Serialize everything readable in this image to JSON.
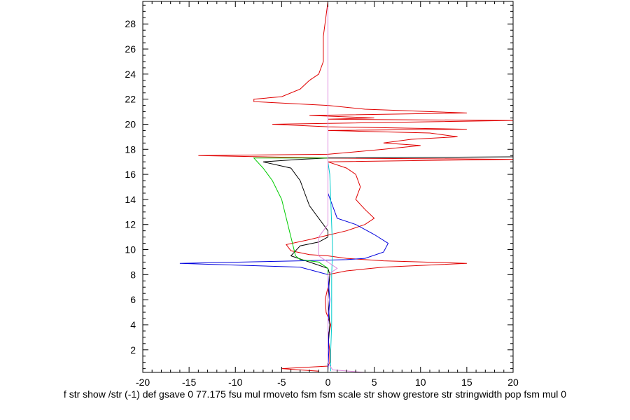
{
  "chart_data": {
    "type": "line",
    "title": "",
    "xlabel": "",
    "ylabel": "",
    "xlim": [
      -20,
      20
    ],
    "ylim": [
      0.2,
      29.8
    ],
    "xticks": [
      -20,
      -15,
      -10,
      -5,
      0,
      5,
      10,
      15,
      20
    ],
    "yticks": [
      2,
      4,
      6,
      8,
      10,
      12,
      14,
      16,
      18,
      20,
      22,
      24,
      26,
      28
    ],
    "x_minor_step": 1,
    "y_minor_step": 0.5,
    "grid": false,
    "legend": "none",
    "series": [
      {
        "color": "#e00000",
        "points": [
          [
            -1,
            0.3
          ],
          [
            -5,
            0.5
          ],
          [
            0,
            0.7
          ],
          [
            0.2,
            1
          ],
          [
            0.2,
            2
          ],
          [
            0,
            3
          ],
          [
            0.3,
            4
          ],
          [
            -0.2,
            5
          ],
          [
            -0.3,
            6
          ],
          [
            0,
            7
          ],
          [
            0,
            8
          ],
          [
            2,
            8.3
          ],
          [
            6,
            8.6
          ],
          [
            15,
            8.9
          ],
          [
            6,
            9.1
          ],
          [
            2,
            9.3
          ],
          [
            0,
            9.5
          ],
          [
            -2,
            9.6
          ],
          [
            -4,
            9.9
          ],
          [
            -4.5,
            10.4
          ],
          [
            -2,
            10.8
          ],
          [
            2,
            11.5
          ],
          [
            4,
            12
          ],
          [
            5,
            12.5
          ],
          [
            4,
            13.2
          ],
          [
            3,
            14
          ],
          [
            3.5,
            15
          ],
          [
            3,
            16
          ],
          [
            2,
            16.5
          ],
          [
            0,
            17
          ],
          [
            20,
            17.2
          ],
          [
            0,
            17.3
          ],
          [
            -14,
            17.5
          ],
          [
            0,
            17.6
          ],
          [
            3,
            17.8
          ],
          [
            6,
            18
          ],
          [
            10,
            18.3
          ],
          [
            6,
            18.5
          ],
          [
            9,
            18.8
          ],
          [
            14,
            19
          ],
          [
            11,
            19.3
          ],
          [
            0,
            19.5
          ],
          [
            15,
            19.6
          ],
          [
            0,
            19.8
          ],
          [
            -6,
            20
          ],
          [
            20,
            20.3
          ],
          [
            0,
            20.4
          ],
          [
            5,
            20.5
          ],
          [
            -2,
            20.7
          ],
          [
            15,
            20.9
          ],
          [
            4,
            21.2
          ],
          [
            0,
            21.5
          ],
          [
            -8,
            21.8
          ],
          [
            -8,
            22
          ],
          [
            -5,
            22.2
          ],
          [
            -3,
            22.8
          ],
          [
            -2,
            23.5
          ],
          [
            -1,
            24
          ],
          [
            -0.5,
            25
          ],
          [
            -0.5,
            27
          ],
          [
            0,
            29.8
          ]
        ]
      },
      {
        "color": "#000000",
        "points": [
          [
            0,
            0.5
          ],
          [
            0,
            2
          ],
          [
            0.2,
            4
          ],
          [
            0,
            6
          ],
          [
            0.2,
            8
          ],
          [
            0,
            8.5
          ],
          [
            -2,
            9
          ],
          [
            -4,
            9.5
          ],
          [
            -3,
            10.3
          ],
          [
            -1,
            10.6
          ],
          [
            0,
            11
          ],
          [
            0,
            11.5
          ],
          [
            -1,
            12.5
          ],
          [
            -2,
            13.5
          ],
          [
            -2.5,
            14.5
          ],
          [
            -3,
            15.5
          ],
          [
            -4,
            16.5
          ],
          [
            -7,
            17
          ],
          [
            -3,
            17.2
          ],
          [
            0,
            17.3
          ],
          [
            20,
            17.4
          ]
        ]
      },
      {
        "color": "#0000dd",
        "points": [
          [
            0,
            0.3
          ],
          [
            0.1,
            2
          ],
          [
            0,
            4
          ],
          [
            0.2,
            6
          ],
          [
            0,
            8
          ],
          [
            -3,
            8.6
          ],
          [
            -16,
            8.9
          ],
          [
            -3,
            9.1
          ],
          [
            2,
            9.2
          ],
          [
            4,
            9.3
          ],
          [
            6,
            9.8
          ],
          [
            6.5,
            10.5
          ],
          [
            5,
            11.2
          ],
          [
            3,
            12
          ],
          [
            1,
            12.5
          ],
          [
            0.5,
            13.5
          ],
          [
            0,
            14.5
          ],
          [
            0,
            16
          ],
          [
            0,
            17
          ]
        ]
      },
      {
        "color": "#00cc00",
        "points": [
          [
            0,
            8
          ],
          [
            0,
            8.5
          ],
          [
            -1,
            9
          ],
          [
            -3,
            9.2
          ],
          [
            -3.5,
            9.5
          ],
          [
            -4,
            11
          ],
          [
            -4.5,
            12.5
          ],
          [
            -5,
            14
          ],
          [
            -6,
            15.5
          ],
          [
            -7,
            16.5
          ],
          [
            -8,
            17.3
          ],
          [
            0,
            17.3
          ]
        ]
      },
      {
        "color": "#00cccc",
        "points": [
          [
            0.3,
            0.3
          ],
          [
            0.3,
            2
          ],
          [
            0.4,
            4
          ],
          [
            0.4,
            6
          ],
          [
            0.4,
            8
          ],
          [
            0.5,
            10
          ],
          [
            0.4,
            12
          ],
          [
            0.3,
            14
          ],
          [
            0.2,
            16
          ],
          [
            0,
            17
          ]
        ]
      },
      {
        "color": "#dd88dd",
        "points": [
          [
            4,
            0.2
          ],
          [
            0.5,
            0.4
          ],
          [
            0,
            1
          ],
          [
            0,
            8
          ],
          [
            1,
            8.5
          ],
          [
            -1,
            9.5
          ],
          [
            -1,
            11
          ],
          [
            0,
            12
          ],
          [
            0,
            14
          ],
          [
            0,
            16
          ],
          [
            0,
            20
          ],
          [
            0,
            25
          ],
          [
            0,
            29.8
          ]
        ]
      }
    ]
  },
  "stray_text": "f str show /str (-1) def gsave 0 77.175 fsu mul rmoveto fsm fsm scale str show grestore str stringwidth pop fsm mul 0"
}
